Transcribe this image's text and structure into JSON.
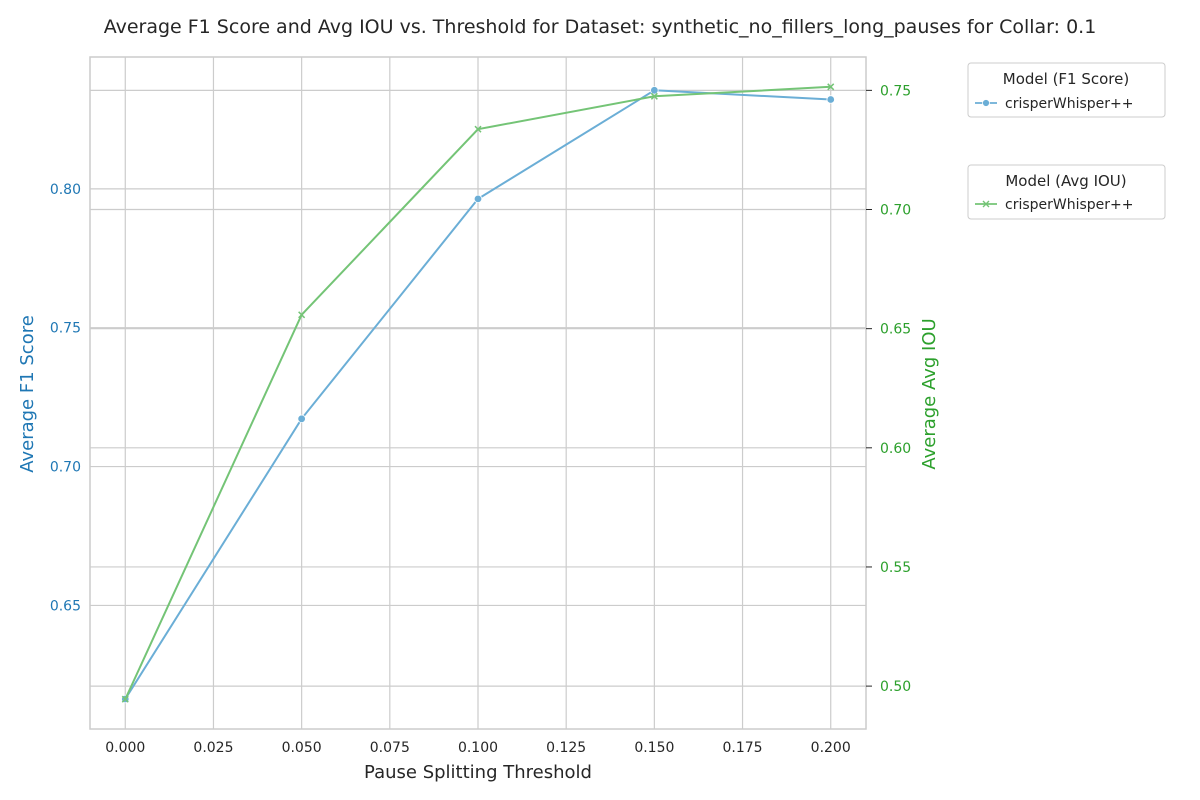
{
  "chart_data": {
    "type": "line",
    "title": "Average F1 Score and Avg IOU vs. Threshold for Dataset: synthetic_no_fillers_long_pauses for Collar: 0.1",
    "xlabel": "Pause Splitting Threshold",
    "ylabel_left": "Average F1 Score",
    "ylabel_right": "Average Avg IOU",
    "x": [
      0.0,
      0.05,
      0.1,
      0.15,
      0.2
    ],
    "xlim": [
      -0.01,
      0.21
    ],
    "xticks": [
      "0.000",
      "0.025",
      "0.050",
      "0.075",
      "0.100",
      "0.125",
      "0.150",
      "0.175",
      "0.200"
    ],
    "ylim_left": [
      0.6055,
      0.8475
    ],
    "yticks_left": [
      "0.65",
      "0.70",
      "0.75",
      "0.80"
    ],
    "ylim_right": [
      0.482,
      0.764
    ],
    "yticks_right": [
      "0.50",
      "0.55",
      "0.60",
      "0.65",
      "0.70",
      "0.75"
    ],
    "grid": true,
    "series": [
      {
        "name": "crisperWhisper++",
        "axis": "left",
        "marker": "circle",
        "color": "#6baed6",
        "values": [
          0.6163,
          0.7172,
          0.7964,
          0.8355,
          0.8322
        ]
      },
      {
        "name": "crisperWhisper++",
        "axis": "right",
        "marker": "x",
        "color": "#74c476",
        "values": [
          0.4945,
          0.6558,
          0.7337,
          0.7475,
          0.7515
        ]
      }
    ],
    "legends": [
      {
        "title": "Model (F1 Score)",
        "entries": [
          "crisperWhisper++"
        ],
        "placement": "upper-right-outside"
      },
      {
        "title": "Model (Avg IOU)",
        "entries": [
          "crisperWhisper++"
        ],
        "placement": "upper-right-outside"
      }
    ],
    "colors": {
      "left_axis": "#1f77b4",
      "right_axis": "#2ca02c",
      "grid": "#cccccc",
      "spine": "#cccccc"
    }
  }
}
